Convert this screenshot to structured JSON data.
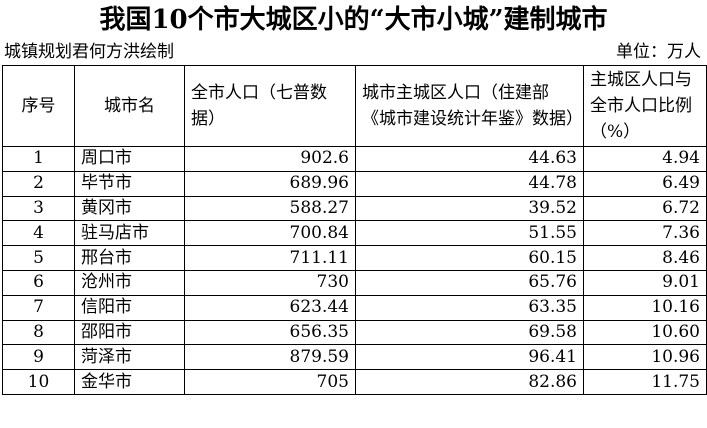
{
  "title": "我国10个市大城区小的“大市小城”建制城市",
  "source": "城镇规划君何方洪绘制",
  "unit": "单位：万人",
  "columns": [
    "序号",
    "城市名",
    "全市人口（七普数据）",
    "城市主城区人口（住建部《城市建设统计年鉴》数据）",
    "主城区人口与全市人口比例（%）"
  ],
  "rows": [
    [
      "1",
      "周口市",
      "902.6",
      "44.63",
      "4.94"
    ],
    [
      "2",
      "毕节市",
      "689.96",
      "44.78",
      "6.49"
    ],
    [
      "3",
      "黄冈市",
      "588.27",
      "39.52",
      "6.72"
    ],
    [
      "4",
      "驻马店市",
      "700.84",
      "51.55",
      "7.36"
    ],
    [
      "5",
      "邢台市",
      "711.11",
      "60.15",
      "8.46"
    ],
    [
      "6",
      "沧州市",
      "730",
      "65.76",
      "9.01"
    ],
    [
      "7",
      "信阳市",
      "623.44",
      "63.35",
      "10.16"
    ],
    [
      "8",
      "邵阳市",
      "656.35",
      "69.58",
      "10.60"
    ],
    [
      "9",
      "菏泽市",
      "879.59",
      "96.41",
      "10.96"
    ],
    [
      "10",
      "金华市",
      "705",
      "82.86",
      "11.75"
    ]
  ]
}
